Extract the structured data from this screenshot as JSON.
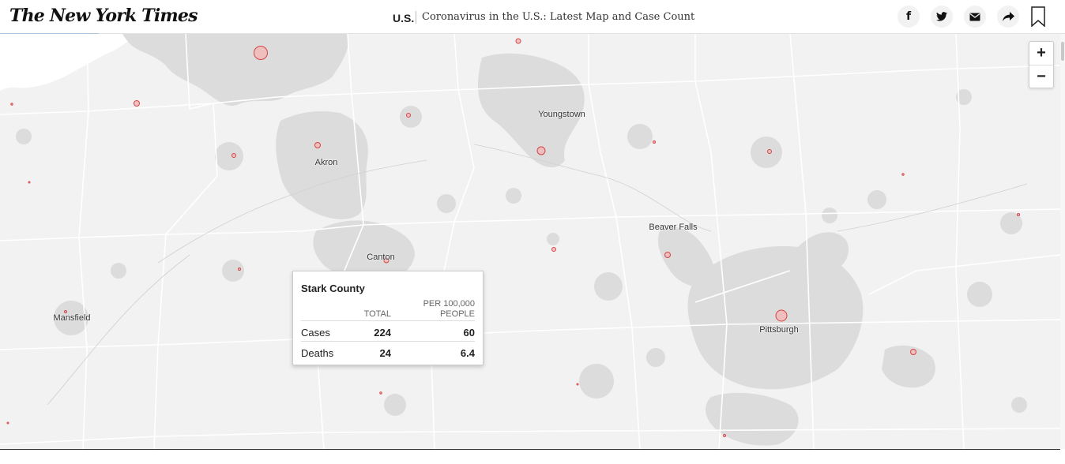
{
  "header": {
    "logo": "The New York Times",
    "section": "U.S.",
    "headline": "Coronavirus in the U.S.: Latest Map and Case Count",
    "share_icons": [
      "facebook-icon",
      "twitter-icon",
      "email-icon",
      "share-icon",
      "bookmark-icon"
    ],
    "share_glyphs": [
      "f",
      "🐦",
      "✉",
      "➦"
    ]
  },
  "map": {
    "zoom_in": "+",
    "zoom_out": "−",
    "cities": [
      {
        "name": "Youngstown"
      },
      {
        "name": "Akron"
      },
      {
        "name": "Beaver Falls"
      },
      {
        "name": "Canton"
      },
      {
        "name": "Mansfield"
      },
      {
        "name": "Pittsburgh"
      }
    ]
  },
  "tooltip": {
    "county": "Stark County",
    "col_total": "TOTAL",
    "col_per_line1": "PER 100,000",
    "col_per_line2": "PEOPLE",
    "rows": [
      {
        "label": "Cases",
        "total": "224",
        "per_100k": "60"
      },
      {
        "label": "Deaths",
        "total": "24",
        "per_100k": "6.4"
      }
    ]
  },
  "colors": {
    "map_bg": "#f2f2f2",
    "urban": "#dcdcdc",
    "water": "#ffffff",
    "county_line": "#ffffff",
    "bubble_fill": "#f2b8b8",
    "bubble_stroke": "#d64545"
  }
}
